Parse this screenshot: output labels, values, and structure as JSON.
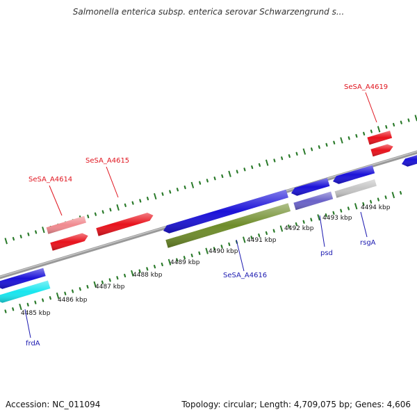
{
  "title": "Salmonella enterica subsp. enterica serovar Schwarzengrund s...",
  "footer": {
    "accession": "Accession: NC_011094",
    "summary": "Topology: circular; Length: 4,709,075 bp; Genes: 4,606"
  },
  "colors": {
    "backbone": "#8c8c8c",
    "tick": "#2a7a2a",
    "red": "#e8121c",
    "pink": "#f08a8f",
    "blue": "#1b12d8",
    "cyan": "#18e6ef",
    "olive": "#6e8c2a",
    "slate": "#6a62c8",
    "gray": "#c4c4c4",
    "label_red": "#e0141e",
    "label_blue": "#1a18b0"
  },
  "ticks": [
    "4485 kbp",
    "4486 kbp",
    "4487 kbp",
    "4488 kbp",
    "4489 kbp",
    "4490 kbp",
    "4491 kbp",
    "4492 kbp",
    "4493 kbp",
    "4494 kbp"
  ],
  "genes": {
    "sesa_a4614": "SeSA_A4614",
    "sesa_a4615": "SeSA_A4615",
    "sesa_a4616": "SeSA_A4616",
    "sesa_a4619": "SeSA_A4619",
    "frda": "frdA",
    "psd": "psd",
    "rsga": "rsgA"
  }
}
